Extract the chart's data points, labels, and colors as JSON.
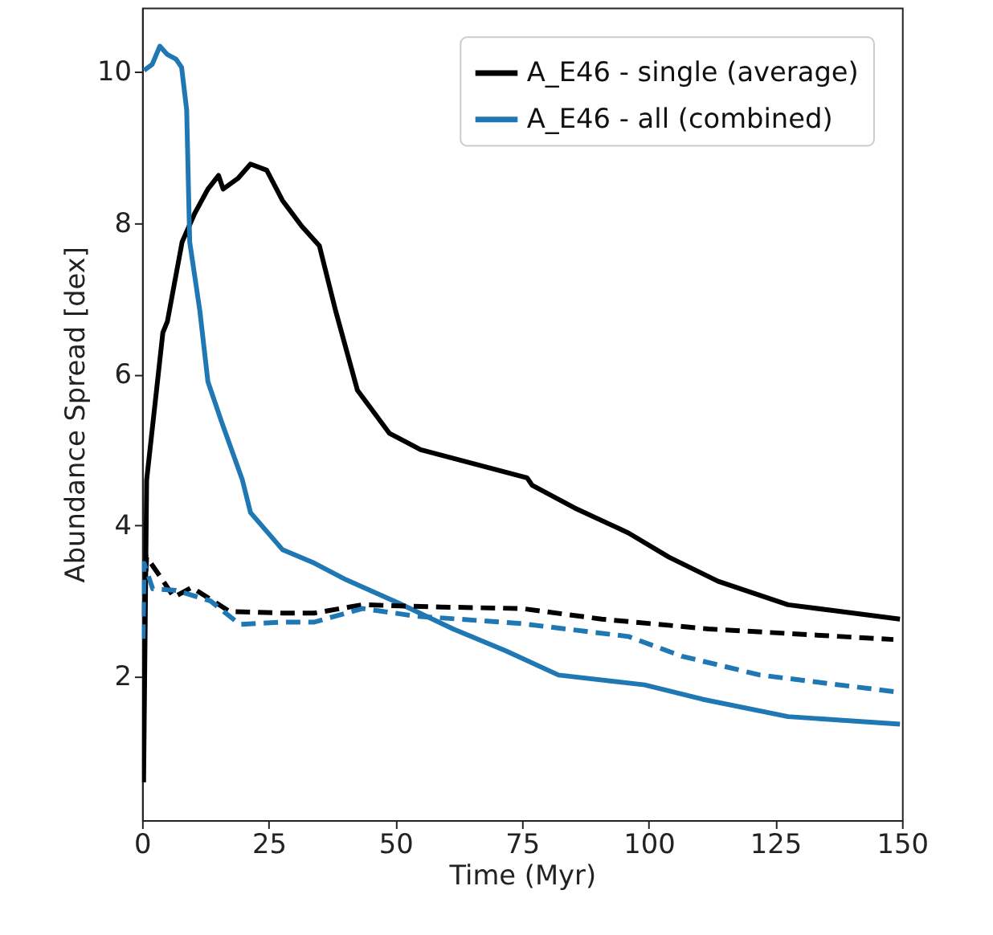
{
  "chart_data": {
    "type": "line",
    "xlabel": "Time (Myr)",
    "ylabel": "Abundance Spread [dex]",
    "xlim": [
      0,
      150
    ],
    "ylim": [
      0.1,
      10.85
    ],
    "xticks": [
      0,
      25,
      50,
      75,
      100,
      125,
      150
    ],
    "yticks": [
      2,
      4,
      6,
      8,
      10
    ],
    "grid": false,
    "legend": "top right",
    "marker": "none",
    "series": [
      {
        "name": "A_E46 - single (average)",
        "color": "#000000",
        "line_style": "solid",
        "x": [
          0.3,
          0.9,
          4.1,
          5,
          7.9,
          10.4,
          13,
          15.1,
          16,
          18.9,
          21.4,
          24.6,
          27.7,
          31.5,
          35,
          38.2,
          42.5,
          48.8,
          55,
          76,
          77,
          85.4,
          96,
          104,
          113.7,
          127.5,
          149.6
        ],
        "values": [
          0.6,
          4.6,
          6.55,
          6.7,
          7.75,
          8.13,
          8.45,
          8.63,
          8.45,
          8.59,
          8.78,
          8.7,
          8.3,
          7.96,
          7.7,
          6.84,
          5.79,
          5.22,
          5.0,
          4.63,
          4.53,
          4.23,
          3.9,
          3.58,
          3.26,
          2.95,
          2.76
        ]
      },
      {
        "name": "A_E46 - all (combined)",
        "color": "#1f77b4",
        "line_style": "solid",
        "x": [
          0.4,
          2,
          3.5,
          5,
          6.7,
          7.8,
          8.8,
          9.4,
          11.4,
          13,
          15.7,
          19.8,
          21.4,
          27.7,
          34,
          40.3,
          50.7,
          61.4,
          71.8,
          82.2,
          99.2,
          110.6,
          127.5,
          149.6
        ],
        "values": [
          10.02,
          10.1,
          10.34,
          10.23,
          10.17,
          10.06,
          9.5,
          7.75,
          6.84,
          5.9,
          5.37,
          4.6,
          4.17,
          3.68,
          3.5,
          3.28,
          2.97,
          2.63,
          2.34,
          2.02,
          1.89,
          1.7,
          1.47,
          1.37
        ]
      },
      {
        "color": "#000000",
        "line_style": "dashed",
        "x": [
          0.3,
          0.9,
          3.5,
          6.3,
          9.8,
          17.3,
          27.7,
          34,
          43.5,
          59,
          75,
          90.7,
          111.8,
          148.3
        ],
        "values": [
          2.8,
          3.58,
          3.33,
          3.05,
          3.18,
          2.86,
          2.84,
          2.84,
          2.95,
          2.92,
          2.9,
          2.76,
          2.63,
          2.49
        ]
      },
      {
        "color": "#1f77b4",
        "line_style": "dashed",
        "x": [
          0.2,
          0.4,
          2.1,
          6.7,
          13.5,
          19.3,
          27.7,
          34,
          43.5,
          54,
          75,
          96,
          106.5,
          122,
          149.6
        ],
        "values": [
          2.5,
          3.5,
          3.16,
          3.14,
          3.0,
          2.69,
          2.72,
          2.72,
          2.9,
          2.8,
          2.7,
          2.53,
          2.27,
          2.02,
          1.79
        ]
      }
    ]
  }
}
